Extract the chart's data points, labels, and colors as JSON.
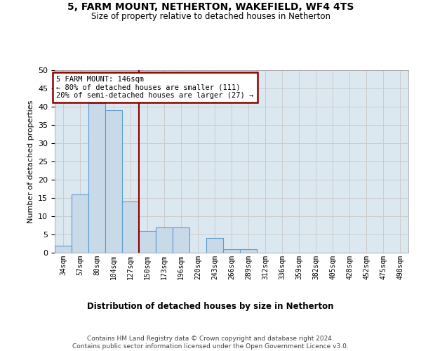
{
  "title1": "5, FARM MOUNT, NETHERTON, WAKEFIELD, WF4 4TS",
  "title2": "Size of property relative to detached houses in Netherton",
  "xlabel": "Distribution of detached houses by size in Netherton",
  "ylabel": "Number of detached properties",
  "footer1": "Contains HM Land Registry data © Crown copyright and database right 2024.",
  "footer2": "Contains public sector information licensed under the Open Government Licence v3.0.",
  "categories": [
    "34sqm",
    "57sqm",
    "80sqm",
    "104sqm",
    "127sqm",
    "150sqm",
    "173sqm",
    "196sqm",
    "220sqm",
    "243sqm",
    "266sqm",
    "289sqm",
    "312sqm",
    "336sqm",
    "359sqm",
    "382sqm",
    "405sqm",
    "428sqm",
    "452sqm",
    "475sqm",
    "498sqm"
  ],
  "values": [
    2,
    16,
    41,
    39,
    14,
    6,
    7,
    7,
    0,
    4,
    1,
    1,
    0,
    0,
    0,
    0,
    0,
    0,
    0,
    0,
    0
  ],
  "bar_color": "#c8d9e8",
  "bar_edge_color": "#5b9bd5",
  "vline_x": 4.5,
  "vline_color": "#8b0000",
  "annotation_line1": "5 FARM MOUNT: 146sqm",
  "annotation_line2": "← 80% of detached houses are smaller (111)",
  "annotation_line3": "20% of semi-detached houses are larger (27) →",
  "annotation_box_edge_color": "#8b0000",
  "ylim": [
    0,
    50
  ],
  "yticks": [
    0,
    5,
    10,
    15,
    20,
    25,
    30,
    35,
    40,
    45,
    50
  ],
  "grid_color": "#cccccc",
  "plot_bg_color": "#dce8f0"
}
